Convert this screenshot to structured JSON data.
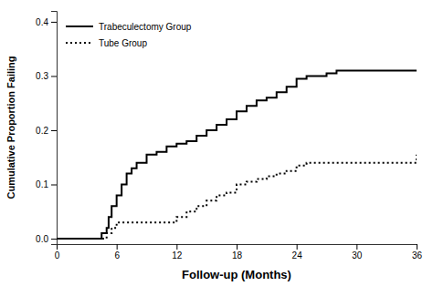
{
  "chart_data": {
    "type": "step",
    "xlabel": "Follow-up (Months)",
    "ylabel": "Cumulative Proportion Failing",
    "series": [
      {
        "name": "Trabeculectomy Group",
        "color": "#000000",
        "line_style": "solid",
        "x": [
          0,
          4,
          4.5,
          5,
          5.2,
          5.5,
          6,
          6.5,
          7,
          7.5,
          8,
          9,
          10,
          11,
          12,
          13,
          14,
          15,
          16,
          17,
          18,
          19,
          20,
          21,
          22,
          23,
          24,
          25,
          27,
          28,
          36
        ],
        "values": [
          0,
          0,
          0.01,
          0.02,
          0.04,
          0.06,
          0.08,
          0.1,
          0.12,
          0.13,
          0.14,
          0.155,
          0.16,
          0.17,
          0.175,
          0.18,
          0.19,
          0.2,
          0.21,
          0.22,
          0.235,
          0.245,
          0.255,
          0.26,
          0.27,
          0.28,
          0.295,
          0.3,
          0.305,
          0.31,
          0.31
        ]
      },
      {
        "name": "Tube Group",
        "color": "#000000",
        "line_style": "dotted",
        "x": [
          0,
          4.5,
          5,
          5.5,
          6,
          12,
          13,
          14,
          15,
          16,
          17,
          18,
          19,
          20,
          21,
          22,
          23,
          24,
          25,
          36
        ],
        "values": [
          0,
          0,
          0.01,
          0.02,
          0.03,
          0.04,
          0.05,
          0.06,
          0.07,
          0.08,
          0.085,
          0.1,
          0.105,
          0.11,
          0.115,
          0.12,
          0.125,
          0.135,
          0.14,
          0.155
        ]
      }
    ],
    "xlim": [
      0,
      36
    ],
    "ylim": [
      -0.01,
      0.42
    ],
    "xticks": [
      0,
      6,
      12,
      18,
      24,
      30,
      36
    ],
    "yticks": [
      {
        "value": 0.0,
        "label": "0.0"
      },
      0.1,
      0.2,
      0.3,
      0.4
    ],
    "grid": false,
    "legend": "upper left"
  }
}
